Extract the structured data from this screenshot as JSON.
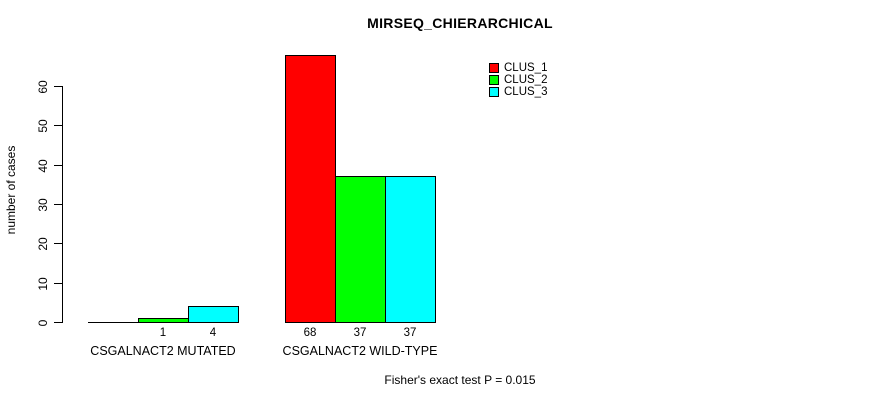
{
  "title": "MIRSEQ_CHIERARCHICAL",
  "chart_data": {
    "type": "bar",
    "title": "MIRSEQ_CHIERARCHICAL",
    "xlabel": "",
    "ylabel": "number of cases",
    "ylim": [
      0,
      60
    ],
    "yticks": [
      0,
      10,
      20,
      30,
      40,
      50,
      60
    ],
    "grid": false,
    "categories": [
      "CSGALNACT2 MUTATED",
      "CSGALNACT2 WILD-TYPE"
    ],
    "series": [
      {
        "name": "CLUS_1",
        "color": "#ff0000",
        "values": [
          0,
          68
        ],
        "bar_labels": [
          "",
          "68"
        ]
      },
      {
        "name": "CLUS_2",
        "color": "#00ff00",
        "values": [
          1,
          37
        ],
        "bar_labels": [
          "1",
          "37"
        ]
      },
      {
        "name": "CLUS_3",
        "color": "#00ffff",
        "values": [
          4,
          37
        ],
        "bar_labels": [
          "4",
          "37"
        ]
      }
    ],
    "legend_position": "top-right",
    "legend_entries": [
      "CLUS_1",
      "CLUS_2",
      "CLUS_3"
    ],
    "annotation": "Fisher's exact test P = 0.015"
  }
}
